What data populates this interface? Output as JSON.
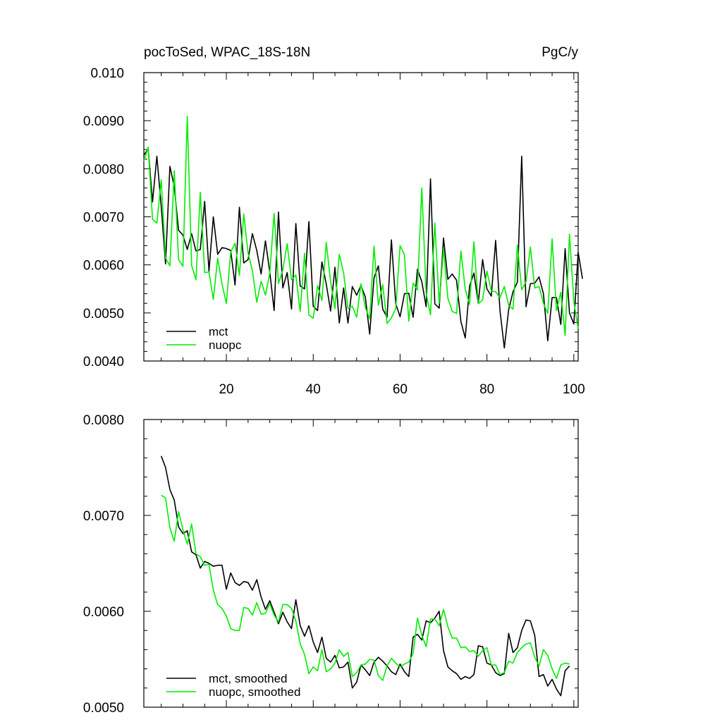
{
  "header": {
    "left": "pocToSed, WPAC_18S-18N",
    "right": "PgC/y"
  },
  "chart_data": [
    {
      "type": "line",
      "title": "pocToSed, WPAC_18S-18N",
      "units": "PgC/y",
      "xlim": [
        1,
        101
      ],
      "ylim": [
        0.004,
        0.01
      ],
      "x_ticks": [
        20,
        40,
        60,
        80,
        100
      ],
      "x_tick_labels": [
        "20",
        "40",
        "60",
        "80",
        "100"
      ],
      "y_ticks": [
        0.004,
        0.005,
        0.006,
        0.007,
        0.008,
        0.009,
        0.01
      ],
      "y_tick_labels": [
        "0.0040",
        "0.0050",
        "0.0060",
        "0.0070",
        "0.0080",
        "0.0090",
        "0.010"
      ],
      "legend_position": "bottom-left",
      "series": [
        {
          "name": "mct",
          "color": "#000000",
          "x_start": 1,
          "values": [
            0.00828,
            0.00842,
            0.00731,
            0.00826,
            0.00722,
            0.00602,
            0.00805,
            0.00763,
            0.00672,
            0.00662,
            0.00632,
            0.00665,
            0.00629,
            0.00632,
            0.00732,
            0.00587,
            0.007,
            0.00622,
            0.00636,
            0.00634,
            0.0063,
            0.00558,
            0.0072,
            0.00604,
            0.00611,
            0.00665,
            0.0063,
            0.00581,
            0.0065,
            0.00585,
            0.00505,
            0.0071,
            0.00552,
            0.00584,
            0.00508,
            0.00686,
            0.00556,
            0.0055,
            0.0069,
            0.00514,
            0.00505,
            0.00606,
            0.0056,
            0.00504,
            0.00595,
            0.00479,
            0.00552,
            0.00479,
            0.00555,
            0.00537,
            0.00557,
            0.00533,
            0.00456,
            0.00573,
            0.00598,
            0.00508,
            0.00491,
            0.00652,
            0.00519,
            0.00492,
            0.0054,
            0.00541,
            0.00491,
            0.00591,
            0.00565,
            0.00513,
            0.00779,
            0.00519,
            0.0051,
            0.00656,
            0.0057,
            0.00581,
            0.00568,
            0.00482,
            0.00448,
            0.00556,
            0.00583,
            0.0052,
            0.00611,
            0.0055,
            0.00535,
            0.00651,
            0.00505,
            0.00427,
            0.00507,
            0.00544,
            0.00564,
            0.00826,
            0.00513,
            0.00561,
            0.00562,
            0.00575,
            0.0054,
            0.00442,
            0.00532,
            0.00532,
            0.00476,
            0.00634,
            0.005,
            0.00477,
            0.00626,
            0.00571
          ]
        },
        {
          "name": "nuopc",
          "color": "#00ee00",
          "x_start": 1,
          "values": [
            0.00816,
            0.00845,
            0.00695,
            0.00687,
            0.00777,
            0.00614,
            0.00598,
            0.00796,
            0.00611,
            0.00597,
            0.00909,
            0.00599,
            0.00569,
            0.00751,
            0.00584,
            0.00585,
            0.00528,
            0.00614,
            0.0056,
            0.0052,
            0.00627,
            0.00645,
            0.00578,
            0.00706,
            0.00624,
            0.00588,
            0.00522,
            0.00566,
            0.00537,
            0.00583,
            0.00707,
            0.00561,
            0.0059,
            0.00644,
            0.00569,
            0.00579,
            0.00503,
            0.00624,
            0.00496,
            0.00489,
            0.00557,
            0.00526,
            0.00647,
            0.00565,
            0.00509,
            0.00622,
            0.00583,
            0.00509,
            0.00514,
            0.00491,
            0.00561,
            0.00511,
            0.00488,
            0.00639,
            0.00516,
            0.00559,
            0.00478,
            0.0049,
            0.00509,
            0.0064,
            0.00621,
            0.00483,
            0.00562,
            0.00548,
            0.0076,
            0.00541,
            0.00496,
            0.00687,
            0.0052,
            0.00633,
            0.00531,
            0.00503,
            0.00499,
            0.00629,
            0.00549,
            0.00518,
            0.00648,
            0.00519,
            0.00527,
            0.00587,
            0.00546,
            0.00544,
            0.00532,
            0.00555,
            0.00516,
            0.00508,
            0.00641,
            0.00548,
            0.00565,
            0.00637,
            0.00552,
            0.00555,
            0.0052,
            0.00499,
            0.00654,
            0.00505,
            0.00543,
            0.00453,
            0.00664,
            0.00524,
            0.00467
          ]
        }
      ]
    },
    {
      "type": "line",
      "xlim": [
        1,
        101
      ],
      "ylim": [
        0.005,
        0.008
      ],
      "y_ticks": [
        0.005,
        0.006,
        0.007,
        0.008
      ],
      "y_tick_labels": [
        "0.0050",
        "0.0060",
        "0.0070",
        "0.0080"
      ],
      "legend_position": "bottom-left",
      "series": [
        {
          "name": "mct, smoothed",
          "color": "#000000",
          "x_start": 5,
          "values": [
            0.00762,
            0.0075,
            0.00727,
            0.00716,
            0.00688,
            0.00681,
            0.00684,
            0.00662,
            0.00659,
            0.00645,
            0.00652,
            0.0065,
            0.00647,
            0.00648,
            0.00648,
            0.00623,
            0.0064,
            0.0063,
            0.00627,
            0.00631,
            0.0063,
            0.00622,
            0.00633,
            0.00615,
            0.00602,
            0.00611,
            0.00599,
            0.00587,
            0.00599,
            0.00589,
            0.00582,
            0.00612,
            0.00585,
            0.00574,
            0.00585,
            0.00568,
            0.00557,
            0.00573,
            0.00551,
            0.00547,
            0.00554,
            0.00541,
            0.00542,
            0.00547,
            0.0052,
            0.00526,
            0.00544,
            0.00539,
            0.00533,
            0.00547,
            0.00552,
            0.00548,
            0.00543,
            0.00537,
            0.00534,
            0.00545,
            0.00537,
            0.00532,
            0.00573,
            0.00576,
            0.0057,
            0.0059,
            0.00588,
            0.00593,
            0.006,
            0.00559,
            0.00542,
            0.00538,
            0.00535,
            0.00529,
            0.00532,
            0.0053,
            0.00534,
            0.00564,
            0.00563,
            0.00546,
            0.00544,
            0.00536,
            0.00533,
            0.00535,
            0.00577,
            0.00557,
            0.00562,
            0.0058,
            0.00591,
            0.0059,
            0.00575,
            0.00532,
            0.00534,
            0.00522,
            0.00529,
            0.00519,
            0.00512,
            0.00538,
            0.00543
          ]
        },
        {
          "name": "nuopc, smoothed",
          "color": "#00ee00",
          "x_start": 5,
          "values": [
            0.00721,
            0.00718,
            0.00687,
            0.00673,
            0.00704,
            0.00685,
            0.0067,
            0.00691,
            0.0066,
            0.00657,
            0.00648,
            0.00649,
            0.00622,
            0.00607,
            0.00603,
            0.00595,
            0.00582,
            0.0058,
            0.0058,
            0.00604,
            0.00603,
            0.00596,
            0.00609,
            0.00597,
            0.00598,
            0.00608,
            0.00596,
            0.00589,
            0.00607,
            0.00607,
            0.00603,
            0.0059,
            0.00566,
            0.00555,
            0.00535,
            0.00542,
            0.00538,
            0.0056,
            0.00537,
            0.0054,
            0.00546,
            0.0056,
            0.00553,
            0.00557,
            0.00532,
            0.00536,
            0.00544,
            0.00545,
            0.0055,
            0.00549,
            0.00533,
            0.00528,
            0.00543,
            0.00551,
            0.00546,
            0.00542,
            0.00545,
            0.00547,
            0.00556,
            0.00593,
            0.00575,
            0.00563,
            0.00592,
            0.00592,
            0.00585,
            0.00602,
            0.00584,
            0.00572,
            0.00572,
            0.00562,
            0.00563,
            0.00558,
            0.00559,
            0.00553,
            0.00559,
            0.00562,
            0.00544,
            0.00544,
            0.00534,
            0.00536,
            0.00548,
            0.00546,
            0.00557,
            0.00562,
            0.00566,
            0.00567,
            0.00552,
            0.00543,
            0.0056,
            0.00554,
            0.0054,
            0.0053,
            0.00544,
            0.00546,
            0.00545
          ]
        }
      ]
    }
  ]
}
